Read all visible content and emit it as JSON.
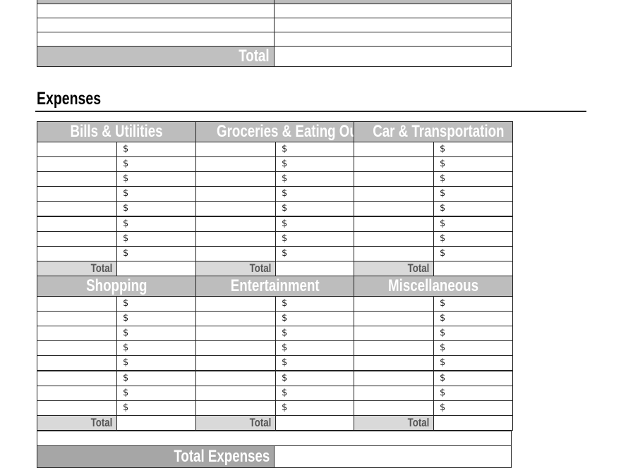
{
  "income_table": {
    "total_label": "Total",
    "rows": 4
  },
  "expenses": {
    "heading": "Expenses",
    "currency_symbol": "$",
    "total_label": "Total",
    "categories": [
      "Bills & Utilities",
      "Groceries & Eating Out",
      "Car & Transportation",
      "Shopping",
      "Entertainment",
      "Miscellaneous"
    ],
    "rows_per_category": 8,
    "grand_total_label": "Total Expenses"
  },
  "colors": {
    "header_bg": "#bdbdbd",
    "total_bg": "#d9d9d9",
    "grand_total_bg": "#a6a6a6",
    "header_text": "#ffffff"
  }
}
